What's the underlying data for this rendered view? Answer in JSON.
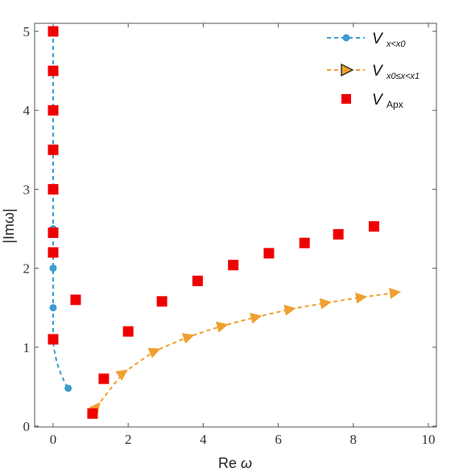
{
  "chart_data": {
    "type": "scatter",
    "xlabel_prefix": "Re",
    "xlabel_symbol": "ω",
    "ylabel": "|Imω|",
    "xlim": [
      -0.5,
      10.3
    ],
    "ylim": [
      0,
      5.1
    ],
    "xticks": [
      0,
      2,
      4,
      6,
      8,
      10
    ],
    "yticks": [
      0,
      1,
      2,
      3,
      4,
      5
    ],
    "grid": false,
    "legend_position": "top-right",
    "colors": {
      "blue": "#3b9ccf",
      "orange": "#f0a02e",
      "red": "#ee0000",
      "axis": "#555555"
    },
    "series": [
      {
        "name": "V",
        "subscript": "x<x0",
        "marker": "circle",
        "line": "dashed",
        "color": "#3b9ccf",
        "x": [
          0.0,
          0.0,
          0.0,
          0.0,
          0.0,
          0.0,
          0.0,
          0.0,
          0.0,
          0.0,
          0.0,
          0.4
        ],
        "y": [
          5.0,
          4.5,
          4.0,
          3.5,
          3.0,
          2.5,
          2.2,
          2.0,
          1.5,
          1.1,
          1.1,
          0.48
        ]
      },
      {
        "name": "V",
        "subscript": "x0≤x<x1",
        "marker": "triangle",
        "line": "dashed",
        "color": "#f0a02e",
        "x": [
          1.15,
          1.85,
          2.7,
          3.6,
          4.5,
          5.4,
          6.3,
          7.25,
          8.2,
          9.1
        ],
        "y": [
          0.24,
          0.67,
          0.95,
          1.13,
          1.27,
          1.38,
          1.48,
          1.56,
          1.63,
          1.69
        ]
      },
      {
        "name": "V",
        "subscript": "Apx",
        "marker": "square",
        "line": "none",
        "color": "#ee0000",
        "x": [
          0.0,
          0.0,
          0.0,
          0.0,
          0.0,
          0.0,
          0.0,
          0.0,
          0.6,
          1.05,
          1.35,
          2.0,
          2.9,
          3.85,
          4.8,
          5.75,
          6.7,
          7.6,
          8.55
        ],
        "y": [
          5.0,
          4.5,
          4.0,
          3.5,
          3.0,
          2.45,
          2.2,
          1.1,
          1.6,
          0.16,
          0.6,
          1.2,
          1.58,
          1.84,
          2.04,
          2.19,
          2.32,
          2.43,
          2.53
        ]
      }
    ]
  }
}
